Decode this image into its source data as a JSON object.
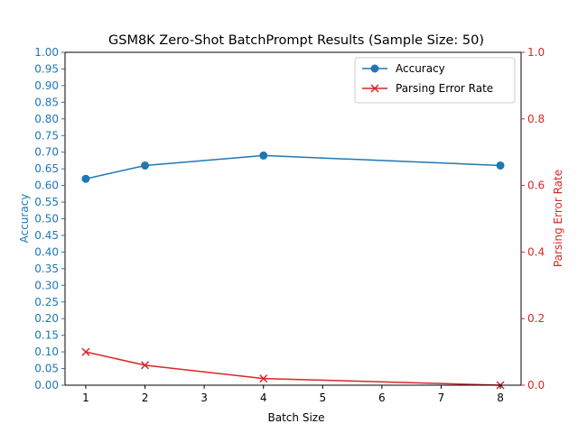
{
  "chart_data": {
    "type": "line",
    "title": "GSM8K Zero-Shot BatchPrompt Results (Sample Size: 50)",
    "xlabel": "Batch Size",
    "x": [
      1,
      2,
      4,
      8
    ],
    "xlim": [
      0.65,
      8.35
    ],
    "xticks": [
      "1",
      "2",
      "3",
      "4",
      "5",
      "6",
      "7",
      "8"
    ],
    "series": [
      {
        "name": "Accuracy",
        "axis": "left",
        "values": [
          0.62,
          0.66,
          0.69,
          0.66
        ],
        "color": "#1f77b4",
        "marker": "circle"
      },
      {
        "name": "Parsing Error Rate",
        "axis": "right",
        "values": [
          0.1,
          0.06,
          0.02,
          0.0
        ],
        "color": "#d62728",
        "marker": "x"
      }
    ],
    "left_axis": {
      "label": "Accuracy",
      "ylim": [
        0,
        1
      ],
      "ticks": [
        "0.00",
        "0.05",
        "0.10",
        "0.15",
        "0.20",
        "0.25",
        "0.30",
        "0.35",
        "0.40",
        "0.45",
        "0.50",
        "0.55",
        "0.60",
        "0.65",
        "0.70",
        "0.75",
        "0.80",
        "0.85",
        "0.90",
        "0.95",
        "1.00"
      ],
      "color": "#1f77b4"
    },
    "right_axis": {
      "label": "Parsing Error Rate",
      "ylim": [
        0,
        1
      ],
      "ticks": [
        "0.0",
        "0.2",
        "0.4",
        "0.6",
        "0.8",
        "1.0"
      ],
      "color": "#d62728"
    },
    "legend": "top-right",
    "grid": false
  }
}
